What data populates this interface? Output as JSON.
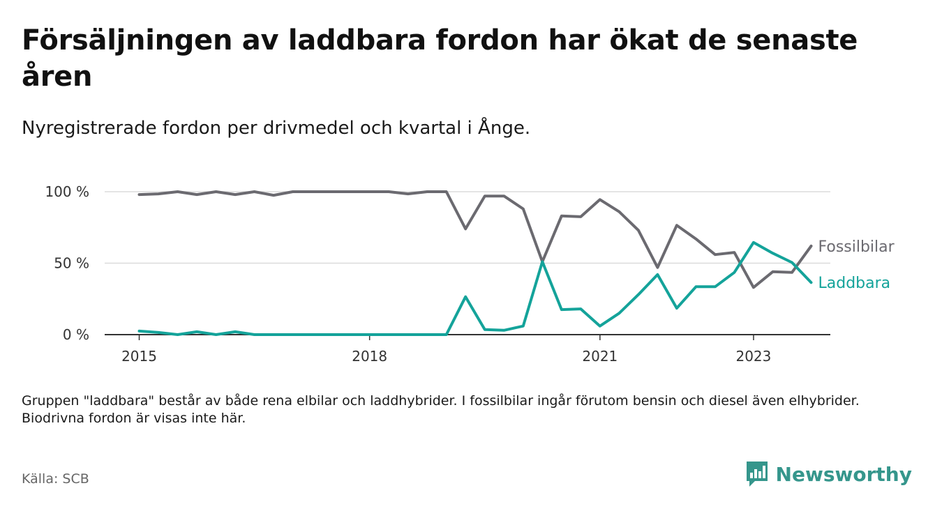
{
  "title": "Försäljningen av laddbara fordon har ökat de senaste åren",
  "subtitle": "Nyregistrerade fordon per drivmedel och kvartal i Ånge.",
  "note": "Gruppen \"laddbara\" består av både rena elbilar och laddhybrider. I fossilbilar ingår förutom bensin och diesel även elhybrider. Biodrivna fordon är visas inte här.",
  "source": "Källa: SCB",
  "brand": "Newsworthy",
  "colors": {
    "fossil": "#6b6a70",
    "laddbara": "#14a39a",
    "grid": "#dcdcdc",
    "axis": "#333333",
    "brand": "#35968c"
  },
  "chart_data": {
    "type": "line",
    "title": "Försäljningen av laddbara fordon har ökat de senaste åren",
    "xlabel": "",
    "ylabel": "",
    "x_start": 2015.0,
    "x_step": 0.25,
    "xlim": [
      2014.55,
      2024.0
    ],
    "ylim": [
      0,
      100
    ],
    "x_ticks": [
      {
        "value": 2015,
        "label": "2015"
      },
      {
        "value": 2018,
        "label": "2018"
      },
      {
        "value": 2021,
        "label": "2021"
      },
      {
        "value": 2023,
        "label": "2023"
      }
    ],
    "y_ticks": [
      {
        "value": 0,
        "label": "0 %"
      },
      {
        "value": 50,
        "label": "50 %"
      },
      {
        "value": 100,
        "label": "100 %"
      }
    ],
    "grid": true,
    "series": [
      {
        "name": "Fossilbilar",
        "color": "#6b6a70",
        "values": [
          98,
          98.5,
          100,
          98,
          100,
          98,
          100,
          97.5,
          100,
          100,
          100,
          100,
          100,
          100,
          98.5,
          100,
          100,
          74,
          97,
          97,
          88,
          51,
          83,
          82.5,
          94.5,
          86,
          73,
          47,
          76.5,
          67,
          56,
          57.5,
          33,
          44,
          43.5,
          62
        ]
      },
      {
        "name": "Laddbara",
        "color": "#14a39a",
        "values": [
          2.5,
          1.5,
          0,
          2,
          0,
          2,
          0,
          0,
          0,
          0,
          0,
          0,
          0,
          0,
          0,
          0,
          0,
          26.5,
          3.5,
          3,
          6,
          51,
          17.5,
          18,
          6,
          15,
          28,
          42,
          18.5,
          33.5,
          33.5,
          43.5,
          64.5,
          57,
          50.5,
          36.5
        ]
      }
    ]
  }
}
